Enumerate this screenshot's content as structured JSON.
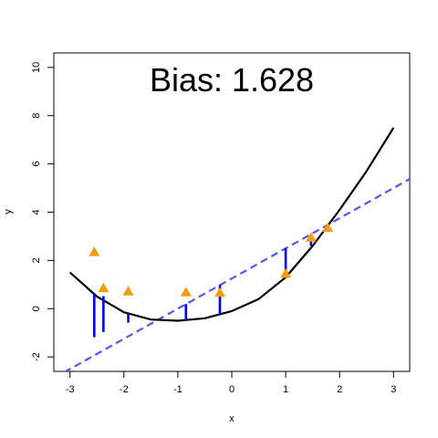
{
  "chart_data": {
    "type": "scatter",
    "title": "Bias:  1.628",
    "xlabel": "x",
    "ylabel": "y",
    "xlim": [
      -3.3,
      3.3
    ],
    "ylim": [
      -2.6,
      10.6
    ],
    "xticks": [
      "-3",
      "-2",
      "-1",
      "0",
      "1",
      "2",
      "3"
    ],
    "yticks": [
      "-2",
      "0",
      "2",
      "4",
      "6",
      "8",
      "10"
    ],
    "grid": false,
    "curve": {
      "type": "quadratic",
      "color": "#000000",
      "x": [
        -3.0,
        -2.5,
        -2.0,
        -1.5,
        -1.0,
        -0.5,
        0.0,
        0.5,
        1.0,
        1.5,
        2.0,
        2.5,
        3.0
      ],
      "y": [
        1.5,
        0.5,
        -0.15,
        -0.45,
        -0.5,
        -0.4,
        -0.1,
        0.4,
        1.3,
        2.6,
        4.1,
        5.7,
        7.5
      ]
    },
    "fit_line": {
      "color": "#5555ee",
      "style": "dashed",
      "intercept": 1.25,
      "slope": 1.25
    },
    "points": {
      "color": "#f39c12",
      "marker": "triangle",
      "x": [
        -2.55,
        -2.38,
        -1.92,
        -0.85,
        -0.22,
        1.0,
        1.47,
        1.78
      ],
      "y": [
        2.35,
        0.85,
        0.72,
        0.68,
        0.66,
        1.45,
        2.95,
        3.35
      ]
    },
    "residuals": {
      "color": "#0000dd",
      "x": [
        -2.55,
        -2.38,
        -1.92,
        -0.85,
        -0.22,
        1.0,
        1.47,
        1.78
      ],
      "from": [
        0.62,
        0.52,
        -0.22,
        -0.5,
        -0.25,
        1.3,
        2.6,
        3.4
      ],
      "to": [
        -1.18,
        -0.97,
        -0.58,
        0.19,
        0.97,
        2.5,
        3.09,
        3.47
      ]
    }
  }
}
